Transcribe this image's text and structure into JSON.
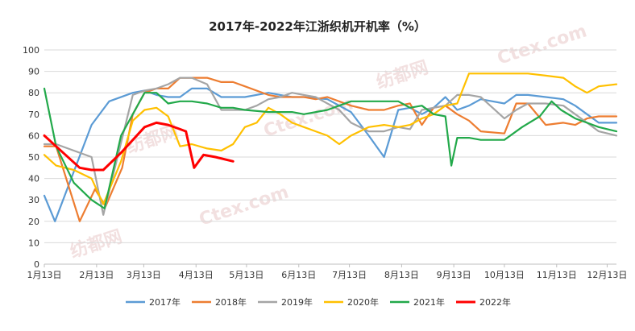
{
  "chart_data": {
    "type": "line",
    "title": "2017年-2022年江浙织机开机率（%）",
    "xlabel": "",
    "ylabel": "",
    "ylim": [
      0,
      100
    ],
    "yticks": [
      0,
      10,
      20,
      30,
      40,
      50,
      60,
      70,
      80,
      90,
      100
    ],
    "xlim": [
      1,
      49.5
    ],
    "x_tick_labels": [
      "1月13日",
      "2月13日",
      "3月13日",
      "4月13日",
      "5月13日",
      "6月13日",
      "7月13日",
      "8月13日",
      "9月13日",
      "10月13日",
      "11月13日",
      "12月13日"
    ],
    "x_tick_positions": [
      1,
      5.43,
      9.43,
      13.86,
      18.14,
      22.57,
      26.86,
      31.29,
      35.71,
      40,
      44.43,
      48.71
    ],
    "grid": "horizontal",
    "legend_position": "bottom",
    "watermark": [
      "纺都网",
      "Ctex.com"
    ],
    "series": [
      {
        "name": "2017年",
        "color": "#5b9bd5",
        "x": [
          1,
          1.9,
          5,
          6.5,
          8.5,
          9.5,
          10.5,
          11.5,
          12.5,
          13.5,
          14.8,
          16,
          18,
          20,
          21,
          22,
          23,
          25,
          27,
          28.5,
          29.8,
          31,
          32,
          33,
          34,
          35,
          36,
          37,
          38,
          40,
          41,
          42,
          43.5,
          45,
          46,
          47,
          48,
          49.5
        ],
        "values": [
          32,
          20,
          65,
          76,
          80,
          81,
          79,
          78,
          78,
          82,
          82,
          78,
          78,
          80,
          79,
          78,
          78,
          77,
          71,
          60,
          50,
          72,
          73,
          70,
          73,
          78,
          72,
          74,
          77,
          75,
          79,
          79,
          78,
          77,
          74,
          70,
          66,
          66
        ]
      },
      {
        "name": "2018年",
        "color": "#ed7d31",
        "x": [
          1,
          2,
          4,
          5.3,
          6.2,
          7.6,
          8.5,
          9.5,
          10.5,
          11.5,
          12.5,
          13.5,
          14.8,
          16,
          17,
          18,
          20,
          21,
          22,
          23,
          24,
          25,
          27,
          28.5,
          29.8,
          31,
          32,
          33,
          34,
          35,
          36,
          37,
          38,
          40,
          41,
          42,
          43.5,
          45,
          46,
          47,
          48,
          49.5
        ],
        "values": [
          55,
          55,
          20,
          35,
          27,
          45,
          70,
          80,
          82,
          82,
          87,
          87,
          87,
          85,
          85,
          83,
          79,
          78,
          78,
          78,
          77,
          78,
          74,
          72,
          72,
          74,
          75,
          65,
          73,
          74,
          70,
          67,
          62,
          61,
          75,
          75,
          65,
          66,
          65,
          68,
          69,
          69
        ]
      },
      {
        "name": "2019年",
        "color": "#a5a5a5",
        "x": [
          1,
          2,
          3.5,
          5,
          6,
          8.5,
          9.5,
          10.5,
          11.5,
          12.5,
          13.5,
          14.8,
          16,
          18,
          19,
          20,
          21,
          22,
          23,
          24,
          25,
          26,
          27,
          28.5,
          29.8,
          31,
          32,
          33,
          34,
          35,
          36,
          37,
          38,
          40,
          41,
          42,
          43.5,
          45,
          46,
          47,
          48,
          49.5
        ],
        "values": [
          56,
          56,
          53,
          50,
          23,
          79,
          81,
          82,
          84,
          87,
          87,
          84,
          72,
          72,
          74,
          77,
          78,
          80,
          79,
          78,
          75,
          72,
          66,
          62,
          62,
          64,
          63,
          72,
          73,
          74,
          79,
          79,
          78,
          68,
          72,
          75,
          75,
          74,
          70,
          66,
          62,
          60
        ]
      },
      {
        "name": "2020年",
        "color": "#ffc000",
        "x": [
          1,
          2,
          3.5,
          5,
          6,
          7.5,
          8.5,
          9.5,
          10.5,
          11.5,
          12.5,
          13.5,
          14.8,
          16,
          17,
          18,
          19,
          20,
          21,
          22,
          23,
          24,
          25,
          26,
          27,
          28.5,
          29.8,
          31,
          32,
          33,
          34,
          35,
          36,
          37,
          38,
          40,
          41,
          42,
          43.5,
          45,
          46,
          47,
          48,
          49.5
        ],
        "values": [
          51,
          46,
          44,
          40,
          28,
          48,
          67,
          72,
          73,
          69,
          55,
          56,
          54,
          53,
          56,
          64,
          66,
          73,
          70,
          66,
          64,
          62,
          60,
          56,
          60,
          64,
          65,
          64,
          65,
          68,
          70,
          74,
          75,
          89,
          89,
          89,
          89,
          89,
          88,
          87,
          83,
          80,
          83,
          84
        ]
      },
      {
        "name": "2021年",
        "color": "#22a94a",
        "x": [
          1,
          2,
          3.5,
          5,
          6.1,
          7.5,
          8.5,
          9.5,
          10.5,
          11.5,
          12.5,
          13.5,
          14.8,
          16,
          17,
          18,
          20,
          22,
          23,
          25,
          27,
          28.5,
          29.8,
          31,
          32,
          33,
          34,
          35,
          35.5,
          36,
          37,
          38,
          40,
          41.5,
          43,
          44,
          44.8,
          46,
          47,
          48,
          49.5
        ],
        "values": [
          82,
          55,
          38,
          30,
          26,
          60,
          70,
          80,
          80,
          75,
          76,
          76,
          75,
          73,
          73,
          72,
          71,
          71,
          70,
          72,
          76,
          76,
          76,
          76,
          73,
          74,
          70,
          69,
          46,
          59,
          59,
          58,
          58,
          64,
          69,
          76,
          72,
          68,
          66,
          64,
          62
        ]
      },
      {
        "name": "2022年",
        "color": "#ff0000",
        "x": [
          1,
          2,
          4,
          5,
          6,
          7.5,
          8.5,
          9.5,
          10.5,
          11.5,
          12.5,
          13,
          13.7,
          14.5,
          15.5,
          17
        ],
        "values": [
          60,
          55,
          45,
          44,
          44,
          52,
          58,
          64,
          66,
          65,
          63,
          62,
          45,
          51,
          50,
          48
        ]
      }
    ]
  }
}
